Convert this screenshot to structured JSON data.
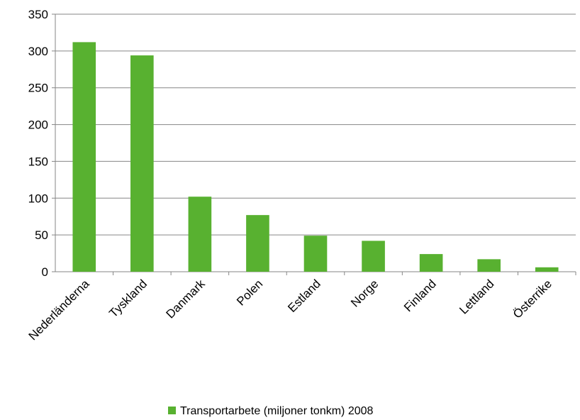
{
  "chart_data": {
    "type": "bar",
    "categories": [
      "Nederländerna",
      "Tyskland",
      "Danmark",
      "Polen",
      "Estland",
      "Norge",
      "Finland",
      "Lettland",
      "Österrike"
    ],
    "series": [
      {
        "name": "Transportarbete (miljoner tonkm) 2008",
        "color": "#58b130",
        "values": [
          312,
          294,
          102,
          77,
          49,
          42,
          24,
          17,
          6
        ]
      }
    ],
    "ylim": [
      0,
      350
    ],
    "yticks": [
      0,
      50,
      100,
      150,
      200,
      250,
      300,
      350
    ],
    "grid": true,
    "legend_position": "bottom",
    "title": "",
    "xlabel": "",
    "ylabel": ""
  }
}
